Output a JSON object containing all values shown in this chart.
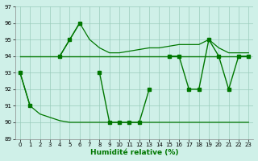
{
  "background_color": "#cff0e8",
  "grid_color": "#99ccbb",
  "line_color": "#007700",
  "ylim": [
    89,
    97
  ],
  "xlim": [
    0,
    23
  ],
  "yticks": [
    89,
    90,
    91,
    92,
    93,
    94,
    95,
    96,
    97
  ],
  "xticks": [
    0,
    1,
    2,
    3,
    4,
    5,
    6,
    7,
    8,
    9,
    10,
    11,
    12,
    13,
    14,
    15,
    16,
    17,
    18,
    19,
    20,
    21,
    22,
    23
  ],
  "xlabel": "Humidité relative (%)",
  "xlabel_color": "#007700",
  "figsize": [
    3.2,
    2.0
  ],
  "dpi": 100,
  "line_main": [
    93,
    91,
    null,
    null,
    94,
    95,
    96,
    null,
    93,
    90,
    90,
    90,
    90,
    92,
    null,
    94,
    94,
    92,
    92,
    95,
    94,
    92,
    94,
    94
  ],
  "line_flat": [
    94,
    94,
    94,
    94,
    94,
    94,
    94,
    94,
    94,
    94,
    94,
    94,
    94,
    94,
    94,
    94,
    94,
    94,
    94,
    94,
    94,
    94,
    94,
    94
  ],
  "line_upper": [
    null,
    null,
    null,
    null,
    94,
    95,
    96,
    95,
    94.5,
    94.2,
    94.2,
    94.3,
    94.4,
    94.5,
    94.5,
    94.6,
    94.7,
    94.7,
    94.7,
    95.0,
    94.5,
    94.2,
    94.2,
    94.2
  ],
  "line_decline": [
    93,
    91,
    90.5,
    90.3,
    90.1,
    90.0,
    90.0,
    90.0,
    90.0,
    90.0,
    90.0,
    90.0,
    90.0,
    90.0,
    90.0,
    90.0,
    90.0,
    90.0,
    90.0,
    90.0,
    90.0,
    90.0,
    90.0,
    90.0
  ]
}
